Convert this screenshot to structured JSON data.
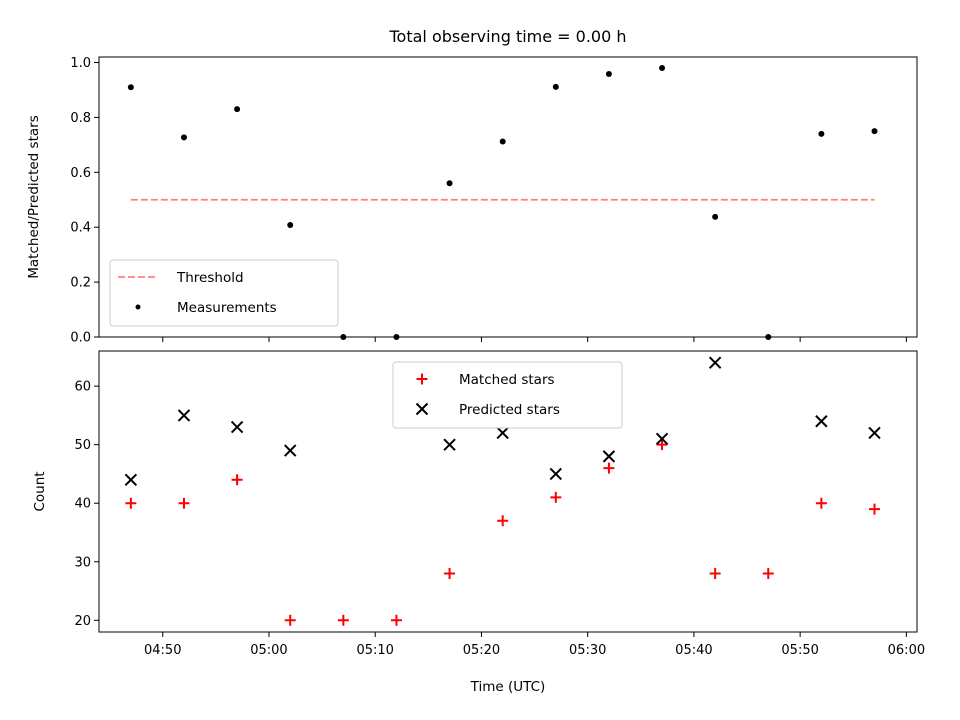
{
  "chart_data": [
    {
      "type": "scatter",
      "title": "Total observing time = 0.00 h",
      "xlabel": "",
      "ylabel": "Matched/Predicted stars",
      "ylim": [
        0.0,
        1.02
      ],
      "yticks": [
        "0.0",
        "0.2",
        "0.4",
        "0.6",
        "0.8",
        "1.0"
      ],
      "legend_position": "lower-left",
      "series": [
        {
          "name": "Threshold",
          "kind": "dashed-line",
          "color": "#ff7f7f",
          "x": [
            "04:47",
            "05:57"
          ],
          "y": [
            0.5,
            0.5
          ]
        },
        {
          "name": "Measurements",
          "kind": "dot",
          "color": "#000000",
          "x": [
            "04:47",
            "04:52",
            "04:57",
            "05:02",
            "05:07",
            "05:12",
            "05:17",
            "05:22",
            "05:27",
            "05:32",
            "05:37",
            "05:42",
            "05:47",
            "05:52",
            "05:57"
          ],
          "y": [
            0.91,
            0.727,
            0.83,
            0.408,
            0.0,
            0.0,
            0.56,
            0.712,
            0.911,
            0.958,
            0.98,
            0.4375,
            0.0,
            0.74,
            0.75
          ]
        }
      ]
    },
    {
      "type": "scatter",
      "title": "",
      "xlabel": "Time (UTC)",
      "ylabel": "Count",
      "ylim": [
        18,
        66
      ],
      "yticks": [
        "20",
        "30",
        "40",
        "50",
        "60"
      ],
      "xticks": [
        "04:50",
        "05:00",
        "05:10",
        "05:20",
        "05:30",
        "05:40",
        "05:50",
        "06:00"
      ],
      "legend_position": "upper-center",
      "series": [
        {
          "name": "Matched stars",
          "marker": "plus",
          "color": "#ff0000",
          "x": [
            "04:47",
            "04:52",
            "04:57",
            "05:02",
            "05:07",
            "05:12",
            "05:17",
            "05:22",
            "05:27",
            "05:32",
            "05:37",
            "05:42",
            "05:47",
            "05:52",
            "05:57"
          ],
          "y": [
            40,
            40,
            44,
            20,
            20,
            20,
            28,
            37,
            41,
            46,
            50,
            28,
            28,
            40,
            39
          ]
        },
        {
          "name": "Predicted stars",
          "marker": "x",
          "color": "#000000",
          "x": [
            "04:47",
            "04:52",
            "04:57",
            "05:02",
            "05:17",
            "05:22",
            "05:27",
            "05:32",
            "05:37",
            "05:42",
            "05:52",
            "05:57"
          ],
          "y": [
            44,
            55,
            53,
            49,
            50,
            52,
            45,
            48,
            51,
            64,
            54,
            52
          ]
        }
      ]
    }
  ],
  "x_domain": [
    "04:44",
    "06:01"
  ]
}
